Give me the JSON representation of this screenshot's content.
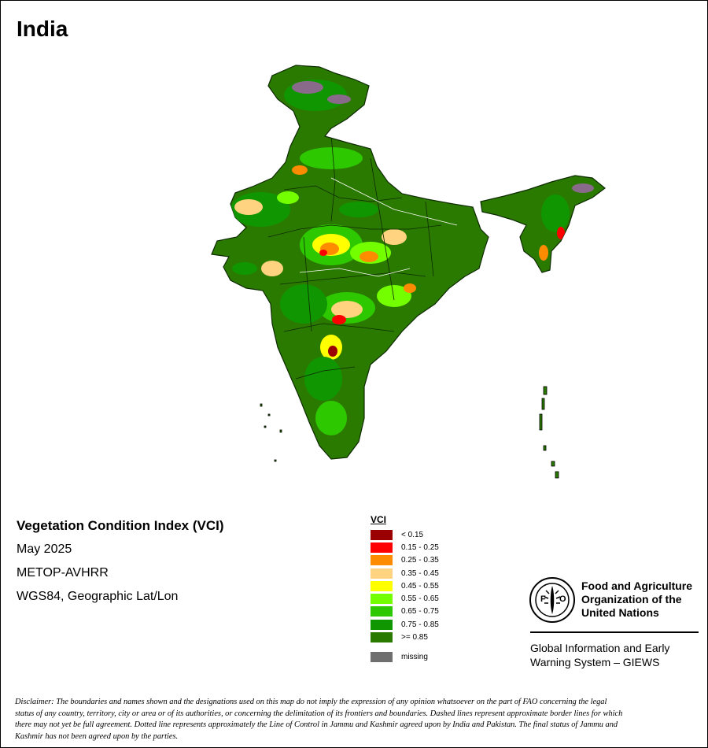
{
  "title": "India",
  "info": {
    "index_name": "Vegetation Condition Index (VCI)",
    "period": "May 2025",
    "sensor": "METOP-AVHRR",
    "projection": "WGS84, Geographic Lat/Lon"
  },
  "legend": {
    "title": "VCI",
    "classes": [
      {
        "label": "< 0.15",
        "color": "#9b0000"
      },
      {
        "label": "0.15 - 0.25",
        "color": "#ff0000"
      },
      {
        "label": "0.25 - 0.35",
        "color": "#ff8c00"
      },
      {
        "label": "0.35 - 0.45",
        "color": "#ffd37f"
      },
      {
        "label": "0.45 - 0.55",
        "color": "#ffff00"
      },
      {
        "label": "0.55 - 0.65",
        "color": "#73ff00"
      },
      {
        "label": "0.65 - 0.75",
        "color": "#2ec800"
      },
      {
        "label": "0.75 - 0.85",
        "color": "#109600"
      },
      {
        "label": ">= 0.85",
        "color": "#2b7a00"
      }
    ],
    "missing": {
      "label": "missing",
      "color": "#6f6f6f"
    }
  },
  "organization": {
    "logo_text": "FAO",
    "logo_motto": "FIAT PANIS",
    "name_lines": [
      "Food and Agriculture",
      "Organization of the",
      "United Nations"
    ],
    "program_lines": [
      "Global Information and Early",
      "Warning System – GIEWS"
    ]
  },
  "disclaimer_lines": [
    "Disclaimer: The boundaries and names shown and the designations used on this map do not imply the expression of any opinion whatsoever on the part of FAO concerning the legal",
    "status of any country, territory, city or area or of its authorities, or concerning the delimitation of its frontiers and boundaries. Dashed lines represent approximate border lines for which",
    "there may not yet be full agreement. Dotted line represents approximately the Line of Control in Jammu and Kashmir agreed upon by India and Pakistan. The final status of Jammu and",
    "Kashmir has not been agreed upon by the parties."
  ],
  "map_icons": [
    "vci-map-india"
  ]
}
